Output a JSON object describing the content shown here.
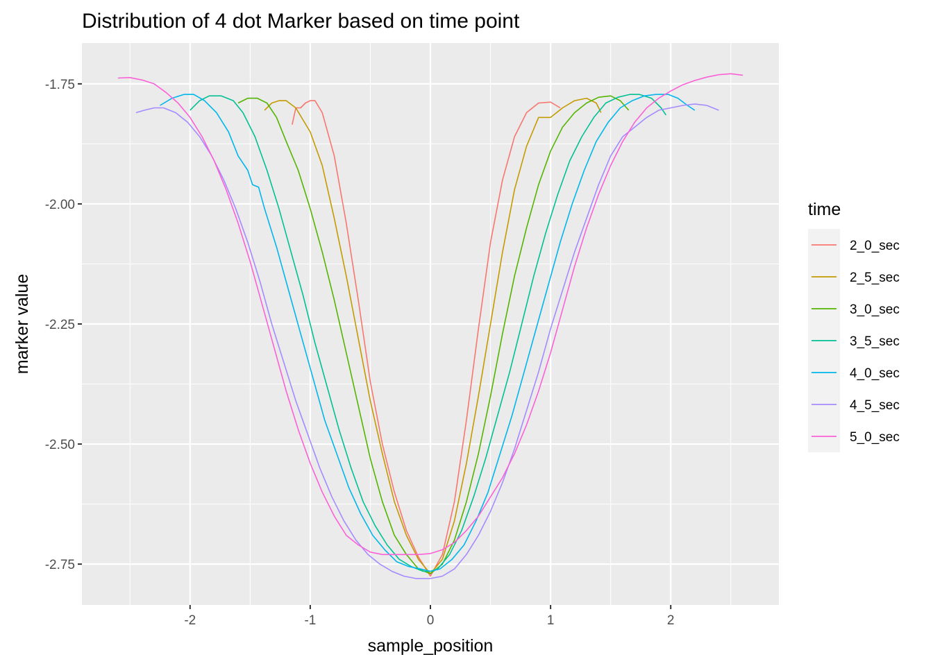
{
  "chart_data": {
    "type": "line",
    "title": "Distribution of 4 dot Marker based on time point",
    "xlabel": "sample_position",
    "ylabel": "marker value",
    "xlim": [
      -2.9,
      2.9
    ],
    "ylim": [
      -2.835,
      -1.665
    ],
    "x_ticks": [
      -2,
      -1,
      0,
      1,
      2
    ],
    "x_tick_labels": [
      "-2",
      "-1",
      "0",
      "1",
      "2"
    ],
    "y_ticks": [
      -1.75,
      -2.0,
      -2.25,
      -2.5,
      -2.75
    ],
    "y_tick_labels": [
      "-1.75",
      "-2.00",
      "-2.25",
      "-2.50",
      "-2.75"
    ],
    "grid": true,
    "legend": {
      "title": "time",
      "position": "right"
    },
    "series": [
      {
        "name": "2_0_sec",
        "color": "#F8766D",
        "points": [
          [
            -1.15,
            -1.835
          ],
          [
            -1.12,
            -1.8
          ],
          [
            -1.08,
            -1.8
          ],
          [
            -1.04,
            -1.79
          ],
          [
            -1.0,
            -1.785
          ],
          [
            -0.96,
            -1.785
          ],
          [
            -0.9,
            -1.81
          ],
          [
            -0.8,
            -1.9
          ],
          [
            -0.7,
            -2.04
          ],
          [
            -0.6,
            -2.2
          ],
          [
            -0.5,
            -2.37
          ],
          [
            -0.4,
            -2.5
          ],
          [
            -0.3,
            -2.6
          ],
          [
            -0.2,
            -2.68
          ],
          [
            -0.1,
            -2.735
          ],
          [
            0.0,
            -2.775
          ],
          [
            0.1,
            -2.73
          ],
          [
            0.2,
            -2.62
          ],
          [
            0.3,
            -2.45
          ],
          [
            0.4,
            -2.26
          ],
          [
            0.5,
            -2.08
          ],
          [
            0.6,
            -1.95
          ],
          [
            0.7,
            -1.86
          ],
          [
            0.8,
            -1.81
          ],
          [
            0.9,
            -1.79
          ],
          [
            1.0,
            -1.788
          ],
          [
            1.08,
            -1.8
          ]
        ]
      },
      {
        "name": "2_5_sec",
        "color": "#C49A00",
        "points": [
          [
            -1.38,
            -1.805
          ],
          [
            -1.32,
            -1.79
          ],
          [
            -1.26,
            -1.785
          ],
          [
            -1.2,
            -1.785
          ],
          [
            -1.12,
            -1.8
          ],
          [
            -1.0,
            -1.85
          ],
          [
            -0.9,
            -1.92
          ],
          [
            -0.8,
            -2.03
          ],
          [
            -0.7,
            -2.15
          ],
          [
            -0.6,
            -2.28
          ],
          [
            -0.5,
            -2.41
          ],
          [
            -0.4,
            -2.52
          ],
          [
            -0.3,
            -2.62
          ],
          [
            -0.2,
            -2.69
          ],
          [
            -0.1,
            -2.74
          ],
          [
            0.0,
            -2.77
          ],
          [
            0.1,
            -2.74
          ],
          [
            0.2,
            -2.66
          ],
          [
            0.3,
            -2.54
          ],
          [
            0.4,
            -2.4
          ],
          [
            0.5,
            -2.25
          ],
          [
            0.6,
            -2.1
          ],
          [
            0.7,
            -1.97
          ],
          [
            0.8,
            -1.88
          ],
          [
            0.9,
            -1.82
          ],
          [
            1.0,
            -1.82
          ],
          [
            1.1,
            -1.8
          ],
          [
            1.2,
            -1.785
          ],
          [
            1.3,
            -1.78
          ],
          [
            1.38,
            -1.79
          ],
          [
            1.42,
            -1.81
          ]
        ]
      },
      {
        "name": "3_0_sec",
        "color": "#53B400",
        "points": [
          [
            -1.6,
            -1.79
          ],
          [
            -1.52,
            -1.78
          ],
          [
            -1.44,
            -1.78
          ],
          [
            -1.36,
            -1.79
          ],
          [
            -1.28,
            -1.82
          ],
          [
            -1.2,
            -1.87
          ],
          [
            -1.1,
            -1.93
          ],
          [
            -1.0,
            -2.01
          ],
          [
            -0.9,
            -2.1
          ],
          [
            -0.8,
            -2.2
          ],
          [
            -0.7,
            -2.31
          ],
          [
            -0.6,
            -2.42
          ],
          [
            -0.5,
            -2.53
          ],
          [
            -0.4,
            -2.62
          ],
          [
            -0.3,
            -2.69
          ],
          [
            -0.2,
            -2.73
          ],
          [
            -0.1,
            -2.76
          ],
          [
            0.0,
            -2.77
          ],
          [
            0.1,
            -2.75
          ],
          [
            0.2,
            -2.7
          ],
          [
            0.3,
            -2.62
          ],
          [
            0.4,
            -2.52
          ],
          [
            0.5,
            -2.4
          ],
          [
            0.6,
            -2.27
          ],
          [
            0.7,
            -2.15
          ],
          [
            0.8,
            -2.05
          ],
          [
            0.9,
            -1.96
          ],
          [
            1.0,
            -1.89
          ],
          [
            1.1,
            -1.84
          ],
          [
            1.2,
            -1.81
          ],
          [
            1.3,
            -1.79
          ],
          [
            1.4,
            -1.778
          ],
          [
            1.5,
            -1.775
          ],
          [
            1.58,
            -1.785
          ],
          [
            1.65,
            -1.805
          ]
        ]
      },
      {
        "name": "3_5_sec",
        "color": "#00C094",
        "points": [
          [
            -2.0,
            -1.805
          ],
          [
            -1.92,
            -1.785
          ],
          [
            -1.84,
            -1.775
          ],
          [
            -1.74,
            -1.775
          ],
          [
            -1.64,
            -1.785
          ],
          [
            -1.56,
            -1.81
          ],
          [
            -1.46,
            -1.86
          ],
          [
            -1.36,
            -1.93
          ],
          [
            -1.26,
            -2.01
          ],
          [
            -1.16,
            -2.1
          ],
          [
            -1.06,
            -2.19
          ],
          [
            -0.96,
            -2.29
          ],
          [
            -0.86,
            -2.38
          ],
          [
            -0.76,
            -2.47
          ],
          [
            -0.66,
            -2.55
          ],
          [
            -0.56,
            -2.62
          ],
          [
            -0.46,
            -2.67
          ],
          [
            -0.36,
            -2.71
          ],
          [
            -0.26,
            -2.74
          ],
          [
            -0.16,
            -2.755
          ],
          [
            -0.06,
            -2.765
          ],
          [
            0.0,
            -2.765
          ],
          [
            0.06,
            -2.76
          ],
          [
            0.16,
            -2.73
          ],
          [
            0.26,
            -2.68
          ],
          [
            0.36,
            -2.61
          ],
          [
            0.46,
            -2.53
          ],
          [
            0.56,
            -2.44
          ],
          [
            0.66,
            -2.35
          ],
          [
            0.76,
            -2.25
          ],
          [
            0.86,
            -2.15
          ],
          [
            0.96,
            -2.06
          ],
          [
            1.06,
            -1.98
          ],
          [
            1.16,
            -1.91
          ],
          [
            1.26,
            -1.86
          ],
          [
            1.36,
            -1.82
          ],
          [
            1.46,
            -1.79
          ],
          [
            1.56,
            -1.778
          ],
          [
            1.66,
            -1.772
          ],
          [
            1.74,
            -1.772
          ],
          [
            1.84,
            -1.78
          ],
          [
            1.92,
            -1.8
          ],
          [
            1.96,
            -1.815
          ]
        ]
      },
      {
        "name": "4_0_sec",
        "color": "#00B6EB",
        "points": [
          [
            -2.25,
            -1.795
          ],
          [
            -2.15,
            -1.78
          ],
          [
            -2.05,
            -1.772
          ],
          [
            -1.97,
            -1.772
          ],
          [
            -1.88,
            -1.785
          ],
          [
            -1.78,
            -1.81
          ],
          [
            -1.68,
            -1.85
          ],
          [
            -1.6,
            -1.9
          ],
          [
            -1.52,
            -1.93
          ],
          [
            -1.48,
            -1.96
          ],
          [
            -1.43,
            -1.965
          ],
          [
            -1.38,
            -2.01
          ],
          [
            -1.28,
            -2.09
          ],
          [
            -1.18,
            -2.18
          ],
          [
            -1.08,
            -2.27
          ],
          [
            -0.98,
            -2.36
          ],
          [
            -0.88,
            -2.45
          ],
          [
            -0.78,
            -2.52
          ],
          [
            -0.68,
            -2.59
          ],
          [
            -0.58,
            -2.645
          ],
          [
            -0.48,
            -2.69
          ],
          [
            -0.38,
            -2.72
          ],
          [
            -0.28,
            -2.745
          ],
          [
            -0.18,
            -2.755
          ],
          [
            -0.08,
            -2.76
          ],
          [
            0.0,
            -2.765
          ],
          [
            0.08,
            -2.76
          ],
          [
            0.18,
            -2.74
          ],
          [
            0.28,
            -2.71
          ],
          [
            0.38,
            -2.66
          ],
          [
            0.48,
            -2.6
          ],
          [
            0.58,
            -2.52
          ],
          [
            0.68,
            -2.44
          ],
          [
            0.78,
            -2.35
          ],
          [
            0.88,
            -2.26
          ],
          [
            0.98,
            -2.17
          ],
          [
            1.08,
            -2.08
          ],
          [
            1.18,
            -2.0
          ],
          [
            1.28,
            -1.93
          ],
          [
            1.38,
            -1.87
          ],
          [
            1.48,
            -1.83
          ],
          [
            1.58,
            -1.8
          ],
          [
            1.68,
            -1.785
          ],
          [
            1.78,
            -1.775
          ],
          [
            1.88,
            -1.772
          ],
          [
            1.98,
            -1.772
          ],
          [
            2.06,
            -1.78
          ],
          [
            2.14,
            -1.795
          ],
          [
            2.2,
            -1.805
          ]
        ]
      },
      {
        "name": "4_5_sec",
        "color": "#A58AFF",
        "points": [
          [
            -2.45,
            -1.81
          ],
          [
            -2.38,
            -1.805
          ],
          [
            -2.3,
            -1.8
          ],
          [
            -2.22,
            -1.8
          ],
          [
            -2.12,
            -1.81
          ],
          [
            -2.02,
            -1.83
          ],
          [
            -1.92,
            -1.86
          ],
          [
            -1.82,
            -1.9
          ],
          [
            -1.72,
            -1.95
          ],
          [
            -1.62,
            -2.01
          ],
          [
            -1.52,
            -2.08
          ],
          [
            -1.42,
            -2.16
          ],
          [
            -1.32,
            -2.25
          ],
          [
            -1.22,
            -2.33
          ],
          [
            -1.12,
            -2.41
          ],
          [
            -1.02,
            -2.48
          ],
          [
            -0.92,
            -2.55
          ],
          [
            -0.82,
            -2.61
          ],
          [
            -0.72,
            -2.66
          ],
          [
            -0.62,
            -2.7
          ],
          [
            -0.52,
            -2.73
          ],
          [
            -0.42,
            -2.75
          ],
          [
            -0.32,
            -2.765
          ],
          [
            -0.22,
            -2.775
          ],
          [
            -0.12,
            -2.78
          ],
          [
            0.0,
            -2.78
          ],
          [
            0.1,
            -2.775
          ],
          [
            0.2,
            -2.76
          ],
          [
            0.3,
            -2.73
          ],
          [
            0.4,
            -2.69
          ],
          [
            0.5,
            -2.64
          ],
          [
            0.6,
            -2.58
          ],
          [
            0.7,
            -2.51
          ],
          [
            0.8,
            -2.43
          ],
          [
            0.9,
            -2.35
          ],
          [
            1.0,
            -2.26
          ],
          [
            1.1,
            -2.18
          ],
          [
            1.2,
            -2.1
          ],
          [
            1.3,
            -2.03
          ],
          [
            1.4,
            -1.96
          ],
          [
            1.5,
            -1.9
          ],
          [
            1.6,
            -1.86
          ],
          [
            1.7,
            -1.84
          ],
          [
            1.8,
            -1.82
          ],
          [
            1.9,
            -1.805
          ],
          [
            2.0,
            -1.8
          ],
          [
            2.1,
            -1.795
          ],
          [
            2.2,
            -1.792
          ],
          [
            2.3,
            -1.795
          ],
          [
            2.4,
            -1.805
          ]
        ]
      },
      {
        "name": "5_0_sec",
        "color": "#FB61D7",
        "points": [
          [
            -2.6,
            -1.738
          ],
          [
            -2.5,
            -1.737
          ],
          [
            -2.4,
            -1.742
          ],
          [
            -2.3,
            -1.75
          ],
          [
            -2.2,
            -1.768
          ],
          [
            -2.1,
            -1.79
          ],
          [
            -2.0,
            -1.82
          ],
          [
            -1.9,
            -1.86
          ],
          [
            -1.8,
            -1.91
          ],
          [
            -1.7,
            -1.97
          ],
          [
            -1.6,
            -2.04
          ],
          [
            -1.5,
            -2.12
          ],
          [
            -1.4,
            -2.21
          ],
          [
            -1.3,
            -2.3
          ],
          [
            -1.2,
            -2.39
          ],
          [
            -1.1,
            -2.47
          ],
          [
            -1.0,
            -2.54
          ],
          [
            -0.9,
            -2.6
          ],
          [
            -0.8,
            -2.65
          ],
          [
            -0.7,
            -2.69
          ],
          [
            -0.6,
            -2.71
          ],
          [
            -0.5,
            -2.725
          ],
          [
            -0.4,
            -2.73
          ],
          [
            -0.3,
            -2.73
          ],
          [
            -0.2,
            -2.73
          ],
          [
            -0.1,
            -2.73
          ],
          [
            0.0,
            -2.728
          ],
          [
            0.1,
            -2.72
          ],
          [
            0.2,
            -2.705
          ],
          [
            0.3,
            -2.68
          ],
          [
            0.4,
            -2.65
          ],
          [
            0.5,
            -2.61
          ],
          [
            0.6,
            -2.57
          ],
          [
            0.7,
            -2.52
          ],
          [
            0.8,
            -2.46
          ],
          [
            0.9,
            -2.39
          ],
          [
            1.0,
            -2.31
          ],
          [
            1.1,
            -2.22
          ],
          [
            1.2,
            -2.13
          ],
          [
            1.3,
            -2.05
          ],
          [
            1.4,
            -1.98
          ],
          [
            1.5,
            -1.92
          ],
          [
            1.6,
            -1.87
          ],
          [
            1.7,
            -1.83
          ],
          [
            1.8,
            -1.8
          ],
          [
            1.9,
            -1.78
          ],
          [
            2.0,
            -1.765
          ],
          [
            2.1,
            -1.752
          ],
          [
            2.2,
            -1.743
          ],
          [
            2.3,
            -1.736
          ],
          [
            2.4,
            -1.731
          ],
          [
            2.5,
            -1.729
          ],
          [
            2.6,
            -1.732
          ]
        ]
      }
    ]
  }
}
